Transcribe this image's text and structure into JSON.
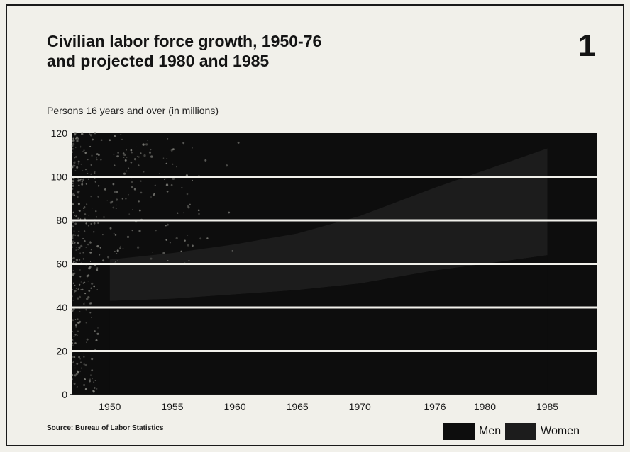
{
  "figure": {
    "title_line1": "Civilian labor force growth, 1950-76",
    "title_line2": "and projected 1980 and 1985",
    "number": "1",
    "subtitle": "Persons 16 years and over (in millions)",
    "source": "Source: Bureau of Labor Statistics"
  },
  "colors": {
    "background": "#f1f0ea",
    "men": "#0d0d0d",
    "women": "#1c1c1c",
    "gridline": "#f1f0ea",
    "early_texture": "#8a8a84"
  },
  "chart_data": {
    "type": "area",
    "stacked": true,
    "title": "Civilian labor force growth, 1950-76 and projected 1980 and 1985",
    "ylabel": "Persons 16 years and over (in millions)",
    "xlabel": "",
    "x_ticks": [
      "1950",
      "1955",
      "1960",
      "1965",
      "1970",
      "1976",
      "1980",
      "1985"
    ],
    "y_ticks": [
      "0",
      "20",
      "40",
      "60",
      "80",
      "100",
      "120"
    ],
    "ylim": [
      0,
      120
    ],
    "grid": true,
    "legend_position": "bottom-right",
    "series": [
      {
        "name": "Men",
        "color_key": "men",
        "x": [
          1950,
          1955,
          1960,
          1965,
          1970,
          1976,
          1980,
          1985
        ],
        "values": [
          43,
          44,
          46,
          48,
          51,
          57,
          60,
          64
        ]
      },
      {
        "name": "Women",
        "color_key": "women",
        "x": [
          1950,
          1955,
          1960,
          1965,
          1970,
          1976,
          1980,
          1985
        ],
        "values": [
          19,
          21,
          23,
          26,
          31,
          38,
          43,
          49
        ]
      }
    ]
  }
}
